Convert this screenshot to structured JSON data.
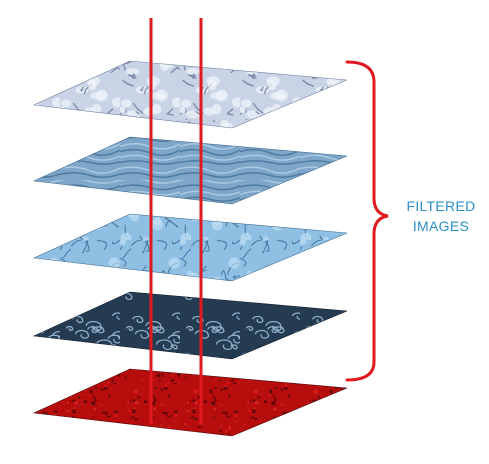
{
  "label": {
    "line1": "FILTERED",
    "line2": "IMAGES"
  },
  "layers": [
    {
      "name": "filtered-image-1",
      "texture": "cracked-ice",
      "base": "#c9d3e6",
      "dark": "#6d7c9e",
      "light": "#f2f5fb"
    },
    {
      "name": "filtered-image-2",
      "texture": "ripples",
      "base": "#7ea6c8",
      "dark": "#3e6a92",
      "light": "#b9d4ea"
    },
    {
      "name": "filtered-image-3",
      "texture": "web-veins",
      "base": "#8fc0e3",
      "dark": "#3d6d96",
      "light": "#c8e3f5"
    },
    {
      "name": "filtered-image-4",
      "texture": "swirls",
      "base": "#243b52",
      "dark": "#0e1a28",
      "light": "#9fc0dc"
    },
    {
      "name": "filtered-image-5",
      "texture": "noise",
      "base": "#b80d0d",
      "dark": "#4d0505",
      "light": "#e02020"
    }
  ],
  "colors": {
    "axis_lines": "#e0191f",
    "bracket": "#e0191f",
    "label": "#2a8fc6"
  }
}
